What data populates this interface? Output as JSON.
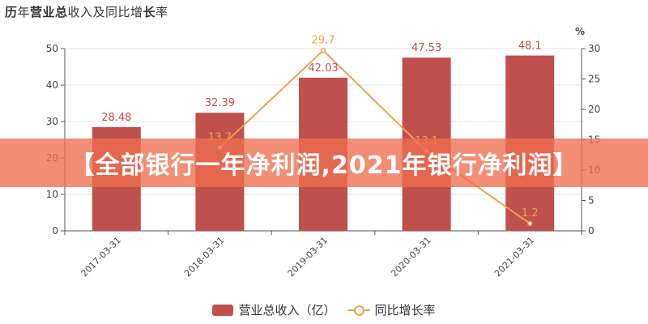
{
  "title_parts": {
    "prefix_bold": "历",
    "mid1": "年",
    "bold2": "营业总",
    "mid2": "收入及同比增",
    "bold3": "长",
    "suffix": "率"
  },
  "banner_text": "【全部银行一年净利润,2021年银行净利润】",
  "chart_data": {
    "type": "bar",
    "title": "历年营业总收入及同比增长率",
    "categories": [
      "2017-03-31",
      "2018-03-31",
      "2019-03-31",
      "2020-03-31",
      "2021-03-31"
    ],
    "series": [
      {
        "name": "营业总收入（亿）",
        "type": "bar",
        "axis": "left",
        "values": [
          28.48,
          32.39,
          42.03,
          47.53,
          48.1
        ],
        "labels": [
          "28.48",
          "32.39",
          "42.03",
          "47.53",
          "48.1"
        ],
        "color": "#c0504d"
      },
      {
        "name": "同比增长率",
        "type": "line",
        "axis": "right",
        "values": [
          null,
          13.7,
          29.7,
          13.1,
          1.2
        ],
        "labels": [
          "",
          "13.7",
          "29.7",
          "13.1",
          "1.2"
        ],
        "color": "#f0a050"
      }
    ],
    "left_axis": {
      "min": 0,
      "max": 50,
      "ticks": [
        "0",
        "10",
        "20",
        "30",
        "40",
        "50"
      ]
    },
    "right_axis": {
      "min": 0,
      "max": 30,
      "unit": "%",
      "ticks": [
        "0",
        "5",
        "10",
        "15",
        "20",
        "25",
        "30"
      ]
    },
    "legend_position": "bottom-center"
  }
}
